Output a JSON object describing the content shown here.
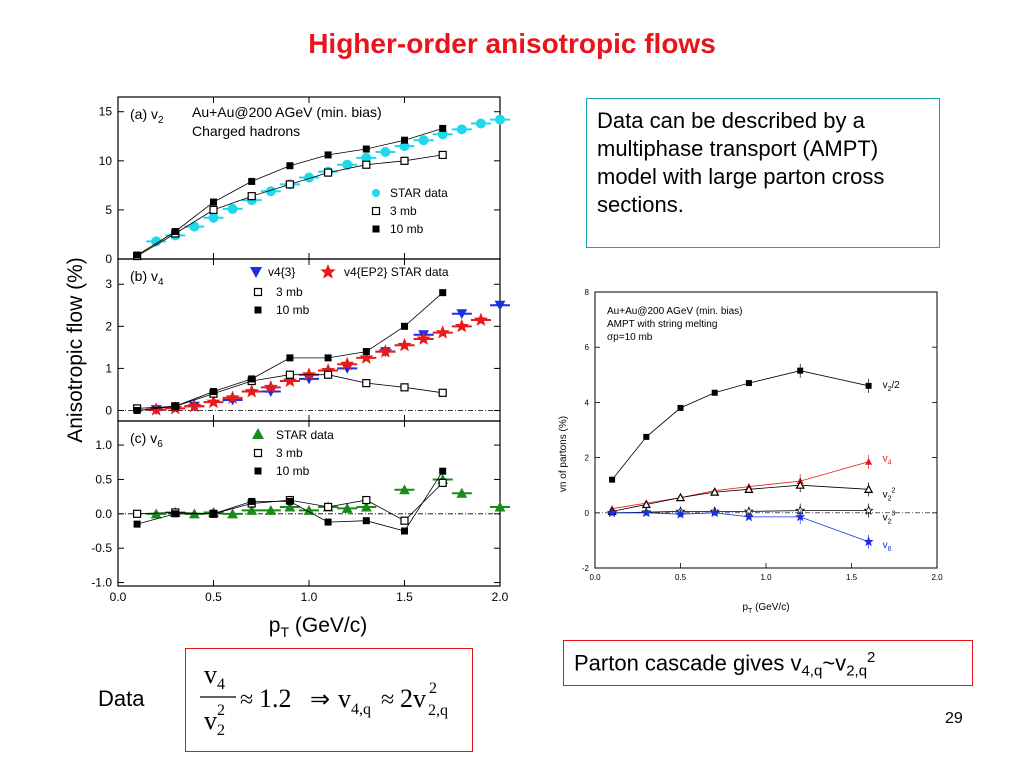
{
  "slide": {
    "title": "Higher-order anisotropic flows",
    "text_box": "Data can be described by a multiphase transport (AMPT) model with large parton cross sections.",
    "cascade": {
      "prefix": "Parton cascade gives v",
      "sub1": "4,q",
      "mid": "~v",
      "sub2": "2,q",
      "sup": "2"
    },
    "data_word": "Data",
    "formula": {
      "num_v": "v",
      "num_sub": "4",
      "den_v": "v",
      "den_sub": "2",
      "den_sup": "2",
      "approx1": "≈",
      "val": "1.2",
      "implies": "⇒",
      "lhs_v": "v",
      "lhs_sub": "4,q",
      "approx2": "≈",
      "rhs": "2v",
      "rhs_sub": "2,q",
      "rhs_sup": "2"
    },
    "page_number": "29"
  },
  "colors": {
    "title": "#e8131b",
    "star_cyan": "#1fd8ee",
    "star_blue": "#1a2fe0",
    "star_red": "#e81a1a",
    "star_green": "#1a8a1a",
    "box_teal": "#19a0a8",
    "box_red": "#e8131b"
  },
  "chart_data": [
    {
      "type": "scatter",
      "panel": "(a) v2",
      "panel_label": "(a) v",
      "panel_sub": "2",
      "annotation_lines": [
        "Au+Au@200 AGeV (min. bias)",
        "Charged hadrons"
      ],
      "xlabel": "p",
      "xlabel_sub": "T",
      "xlabel_unit": " (GeV/c)",
      "ylabel": "Anisotropic flow (%)",
      "xlim": [
        0,
        2.0
      ],
      "ylim": [
        0,
        16.5
      ],
      "yticks": [
        0,
        5,
        10,
        15
      ],
      "legend": [
        "STAR data",
        "3 mb",
        "10 mb"
      ],
      "series": [
        {
          "name": "STAR data",
          "marker": "circle",
          "color": "#1fd8ee",
          "x": [
            0.2,
            0.3,
            0.4,
            0.5,
            0.6,
            0.7,
            0.8,
            0.9,
            1.0,
            1.1,
            1.2,
            1.3,
            1.4,
            1.5,
            1.6,
            1.7,
            1.8,
            1.9,
            2.0
          ],
          "y": [
            1.8,
            2.4,
            3.3,
            4.2,
            5.1,
            6.0,
            6.9,
            7.6,
            8.3,
            8.9,
            9.6,
            10.3,
            10.9,
            11.5,
            12.1,
            12.7,
            13.2,
            13.8,
            14.2
          ]
        },
        {
          "name": "3 mb",
          "marker": "open-square",
          "color": "#000000",
          "x": [
            0.1,
            0.3,
            0.5,
            0.7,
            0.9,
            1.1,
            1.3,
            1.5,
            1.7
          ],
          "y": [
            0.3,
            2.6,
            5.0,
            6.4,
            7.6,
            8.8,
            9.6,
            10.0,
            10.6
          ]
        },
        {
          "name": "10 mb",
          "marker": "filled-square",
          "color": "#000000",
          "x": [
            0.1,
            0.3,
            0.5,
            0.7,
            0.9,
            1.1,
            1.3,
            1.5,
            1.7
          ],
          "y": [
            0.4,
            2.8,
            5.8,
            7.9,
            9.5,
            10.6,
            11.2,
            12.1,
            13.3
          ]
        }
      ]
    },
    {
      "type": "scatter",
      "panel": "(b) v4",
      "panel_label": "(b) v",
      "panel_sub": "4",
      "xlim": [
        0,
        2.0
      ],
      "ylim": [
        -0.25,
        3.6
      ],
      "yticks": [
        0,
        1,
        2,
        3
      ],
      "legend": [
        "v4{3}",
        "v4{EP2} STAR data",
        "3 mb",
        "10 mb"
      ],
      "series": [
        {
          "name": "v4{3}",
          "marker": "down-triangle",
          "color": "#1a2fe0",
          "x": [
            0.2,
            0.4,
            0.6,
            0.8,
            1.0,
            1.2,
            1.4,
            1.6,
            1.8,
            2.0
          ],
          "y": [
            0.02,
            0.1,
            0.25,
            0.45,
            0.75,
            1.0,
            1.4,
            1.8,
            2.3,
            2.5
          ]
        },
        {
          "name": "v4{EP2} STAR data",
          "marker": "star",
          "color": "#e81a1a",
          "x": [
            0.2,
            0.3,
            0.4,
            0.5,
            0.6,
            0.7,
            0.8,
            0.9,
            1.0,
            1.1,
            1.2,
            1.3,
            1.4,
            1.5,
            1.6,
            1.7,
            1.8,
            1.9
          ],
          "y": [
            0.02,
            0.05,
            0.1,
            0.2,
            0.3,
            0.45,
            0.55,
            0.7,
            0.85,
            0.95,
            1.1,
            1.25,
            1.4,
            1.55,
            1.7,
            1.85,
            2.0,
            2.15
          ]
        },
        {
          "name": "3 mb",
          "marker": "open-square",
          "color": "#000000",
          "x": [
            0.1,
            0.3,
            0.5,
            0.7,
            0.9,
            1.1,
            1.3,
            1.5,
            1.7
          ],
          "y": [
            0.05,
            0.1,
            0.4,
            0.7,
            0.85,
            0.85,
            0.65,
            0.55,
            0.42
          ]
        },
        {
          "name": "10 mb",
          "marker": "filled-square",
          "color": "#000000",
          "x": [
            0.1,
            0.3,
            0.5,
            0.7,
            0.9,
            1.1,
            1.3,
            1.5,
            1.7
          ],
          "y": [
            0.0,
            0.1,
            0.45,
            0.75,
            1.25,
            1.25,
            1.4,
            2.0,
            2.8
          ]
        }
      ]
    },
    {
      "type": "scatter",
      "panel": "(c) v6",
      "panel_label": "(c) v",
      "panel_sub": "6",
      "xlim": [
        0,
        2.0
      ],
      "ylim": [
        -1.05,
        1.35
      ],
      "yticks": [
        -1.0,
        -0.5,
        0.0,
        0.5,
        1.0
      ],
      "legend": [
        "STAR data",
        "3 mb",
        "10 mb"
      ],
      "series": [
        {
          "name": "STAR data",
          "marker": "up-triangle",
          "color": "#1a8a1a",
          "x": [
            0.2,
            0.3,
            0.4,
            0.5,
            0.6,
            0.7,
            0.8,
            0.9,
            1.0,
            1.1,
            1.2,
            1.3,
            1.5,
            1.7,
            1.8,
            2.0
          ],
          "y": [
            0.0,
            0.02,
            0.0,
            0.02,
            0.0,
            0.05,
            0.05,
            0.1,
            0.05,
            0.1,
            0.08,
            0.1,
            0.35,
            0.5,
            0.3,
            0.1
          ]
        },
        {
          "name": "3 mb",
          "marker": "open-square",
          "color": "#000000",
          "x": [
            0.1,
            0.3,
            0.5,
            0.7,
            0.9,
            1.1,
            1.3,
            1.5,
            1.7
          ],
          "y": [
            0.0,
            0.02,
            0.0,
            0.15,
            0.2,
            0.1,
            0.2,
            -0.1,
            0.45
          ]
        },
        {
          "name": "10 mb",
          "marker": "filled-square",
          "color": "#000000",
          "x": [
            0.1,
            0.3,
            0.5,
            0.7,
            0.9,
            1.1,
            1.3,
            1.5,
            1.7
          ],
          "y": [
            -0.15,
            0.0,
            0.0,
            0.18,
            0.18,
            -0.12,
            -0.1,
            -0.25,
            0.62
          ]
        }
      ]
    },
    {
      "type": "line",
      "panel": "AMPT parton vn",
      "annotation_lines": [
        "Au+Au@200 AGeV (min. bias)",
        "AMPT with string melting",
        "σp=10 mb"
      ],
      "xlabel": "p",
      "xlabel_sub": "T",
      "xlabel_unit": " (GeV/c)",
      "ylabel": "vn of partons (%)",
      "xlim": [
        0,
        2.0
      ],
      "ylim": [
        -2,
        8
      ],
      "xticks": [
        0.0,
        0.5,
        1.0,
        1.5,
        2.0
      ],
      "yticks": [
        -2,
        0,
        2,
        4,
        6,
        8
      ],
      "series": [
        {
          "name": "v2/2",
          "marker": "filled-square",
          "color": "#000000",
          "x": [
            0.1,
            0.3,
            0.5,
            0.7,
            0.9,
            1.2,
            1.6
          ],
          "y": [
            1.2,
            2.75,
            3.8,
            4.35,
            4.7,
            5.15,
            4.6
          ]
        },
        {
          "name": "v4",
          "marker": "up-triangle",
          "color": "#e81a1a",
          "x": [
            0.1,
            0.3,
            0.5,
            0.7,
            0.9,
            1.2,
            1.6
          ],
          "y": [
            0.15,
            0.35,
            0.55,
            0.8,
            0.95,
            1.15,
            1.85
          ]
        },
        {
          "name": "v2^2",
          "marker": "open-up-triangle",
          "color": "#000000",
          "x": [
            0.1,
            0.3,
            0.5,
            0.7,
            0.9,
            1.2,
            1.6
          ],
          "y": [
            0.05,
            0.3,
            0.55,
            0.75,
            0.85,
            1.0,
            0.85
          ]
        },
        {
          "name": "v2^3",
          "marker": "open-star",
          "color": "#000000",
          "x": [
            0.1,
            0.3,
            0.5,
            0.7,
            0.9,
            1.2,
            1.6
          ],
          "y": [
            0.0,
            0.02,
            0.05,
            0.05,
            0.05,
            0.08,
            0.08
          ]
        },
        {
          "name": "v6",
          "marker": "star",
          "color": "#1a2fe0",
          "x": [
            0.1,
            0.3,
            0.5,
            0.7,
            0.9,
            1.2,
            1.6
          ],
          "y": [
            0.0,
            0.0,
            -0.05,
            0.0,
            -0.15,
            -0.15,
            -1.05
          ]
        }
      ]
    }
  ]
}
